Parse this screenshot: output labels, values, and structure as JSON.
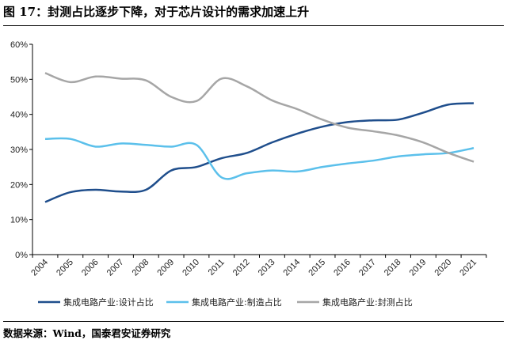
{
  "title": "图 17：封测占比逐步下降，对于芯片设计的需求加速上升",
  "source": "数据来源：Wind，国泰君安证券研究",
  "chart_data": {
    "type": "line",
    "smooth": true,
    "x": [
      "2004",
      "2005",
      "2006",
      "2007",
      "2008",
      "2009",
      "2010",
      "2011",
      "2012",
      "2013",
      "2014",
      "2015",
      "2016",
      "2017",
      "2018",
      "2019",
      "2020",
      "2021"
    ],
    "ylim": [
      0,
      60
    ],
    "yticks": [
      "0%",
      "10%",
      "20%",
      "30%",
      "40%",
      "50%",
      "60%"
    ],
    "ytick_values": [
      0,
      10,
      20,
      30,
      40,
      50,
      60
    ],
    "grid": false,
    "legend_position": "bottom",
    "series": [
      {
        "name": "集成电路产业:设计占比",
        "color": "#1f4e8c",
        "values": [
          15,
          17.8,
          18.5,
          18,
          18.5,
          24,
          25,
          27.5,
          29,
          32,
          34.5,
          36.5,
          37.8,
          38.3,
          38.5,
          40.5,
          42.8,
          43.2
        ]
      },
      {
        "name": "集成电路产业:制造占比",
        "color": "#5bc0eb",
        "values": [
          33,
          33,
          30.8,
          31.7,
          31.3,
          30.8,
          31.3,
          22,
          23.2,
          24,
          23.7,
          25,
          26,
          26.8,
          28,
          28.6,
          29,
          30.4
        ]
      },
      {
        "name": "集成电路产业:封测占比",
        "color": "#a6a6a6",
        "values": [
          51.8,
          49.2,
          50.8,
          50.2,
          49.7,
          45,
          43.8,
          50.2,
          48,
          44,
          41.5,
          38.5,
          36.2,
          35.2,
          34,
          32,
          29,
          26.5
        ]
      }
    ]
  }
}
